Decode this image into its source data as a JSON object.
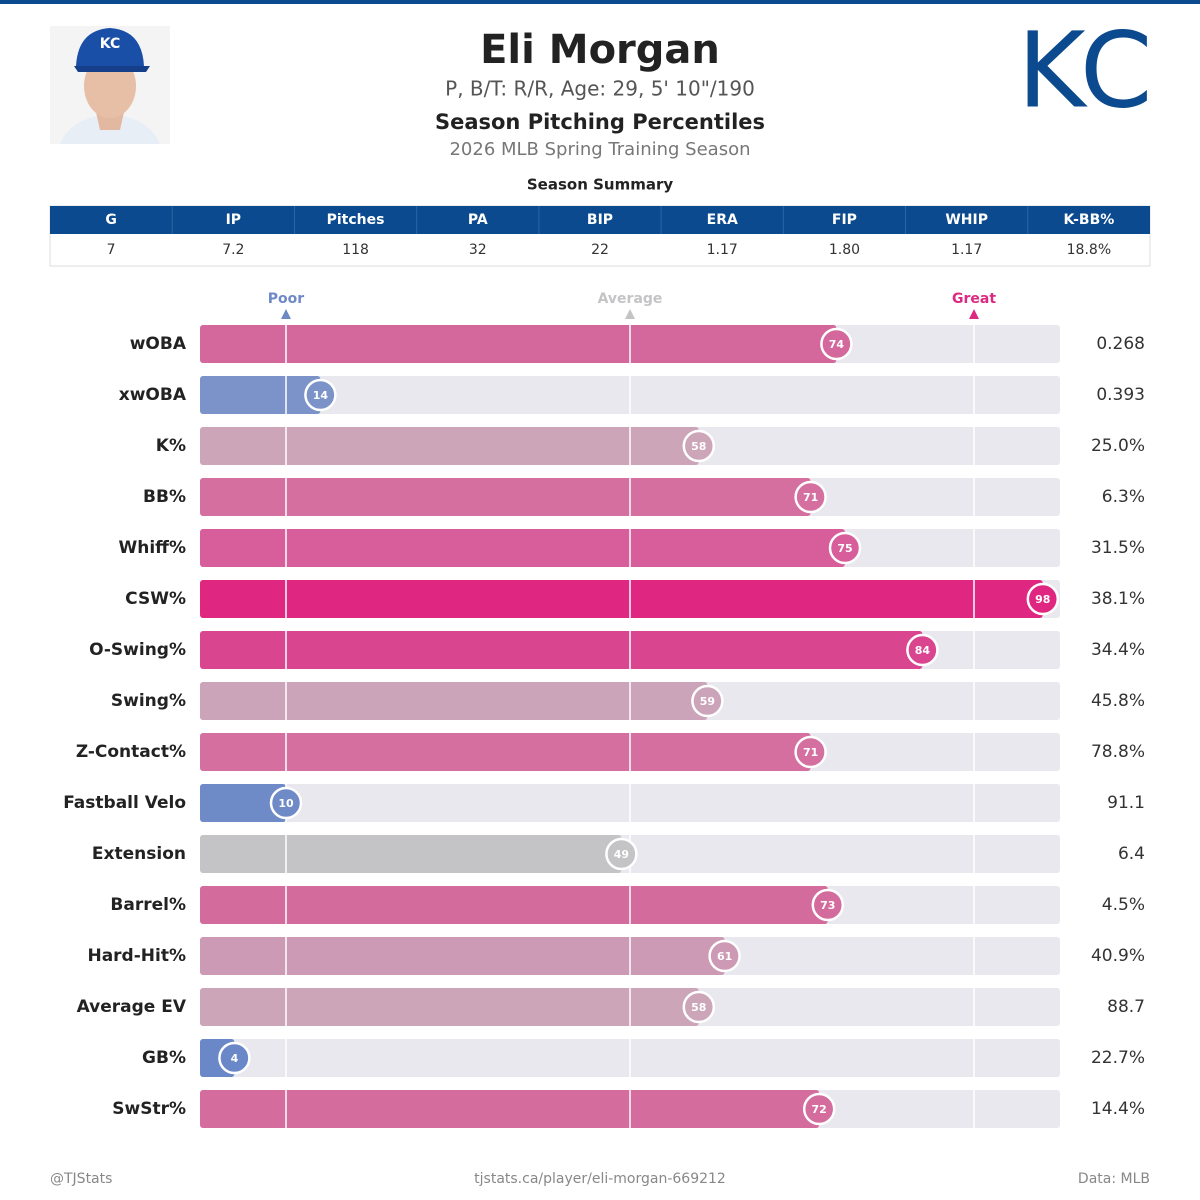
{
  "header": {
    "name": "Eli Morgan",
    "bio": "P, B/T: R/R, Age: 29, 5' 10\"/190",
    "title": "Season Pitching Percentiles",
    "subtitle": "2026 MLB Spring Training Season",
    "logo": "KC"
  },
  "summary": {
    "title": "Season Summary",
    "columns": [
      "G",
      "IP",
      "Pitches",
      "PA",
      "BIP",
      "ERA",
      "FIP",
      "WHIP",
      "K-BB%"
    ],
    "values": [
      "7",
      "7.2",
      "118",
      "32",
      "22",
      "1.17",
      "1.80",
      "1.17",
      "18.8%"
    ]
  },
  "chart_data": {
    "type": "bar",
    "orientation": "horizontal",
    "categories": [
      "wOBA",
      "xwOBA",
      "K%",
      "BB%",
      "Whiff%",
      "CSW%",
      "O-Swing%",
      "Swing%",
      "Z-Contact%",
      "Fastball Velo",
      "Extension",
      "Barrel%",
      "Hard-Hit%",
      "Average EV",
      "GB%",
      "SwStr%"
    ],
    "values": [
      74,
      14,
      58,
      71,
      75,
      98,
      84,
      59,
      71,
      10,
      49,
      73,
      61,
      58,
      4,
      72
    ],
    "colors": [
      "#d4679b",
      "#7b93c9",
      "#cca5b8",
      "#d46fa0",
      "#d75e9a",
      "#df2680",
      "#da4590",
      "#cca4b9",
      "#d46fa0",
      "#6e8bc8",
      "#c4c4c6",
      "#d46b9d",
      "#cd9ab5",
      "#cca5b8",
      "#6a88c8",
      "#d46c9e"
    ],
    "stats": [
      "0.268",
      "0.393",
      "25.0%",
      "6.3%",
      "31.5%",
      "38.1%",
      "34.4%",
      "45.8%",
      "78.8%",
      "91.1",
      "6.4",
      "4.5%",
      "40.9%",
      "88.7",
      "22.7%",
      "14.4%"
    ],
    "xlim": [
      0,
      100
    ],
    "xticks": [
      {
        "value": 10,
        "label": "Poor"
      },
      {
        "value": 50,
        "label": "Average"
      },
      {
        "value": 90,
        "label": "Great"
      }
    ],
    "tick_colors": [
      "#6f88c6",
      "#c4c4c6",
      "#dc2a82"
    ],
    "grid": true
  },
  "footer": {
    "left": "@TJStats",
    "center": "tjstats.ca/player/eli-morgan-669212",
    "right": "Data: MLB"
  }
}
